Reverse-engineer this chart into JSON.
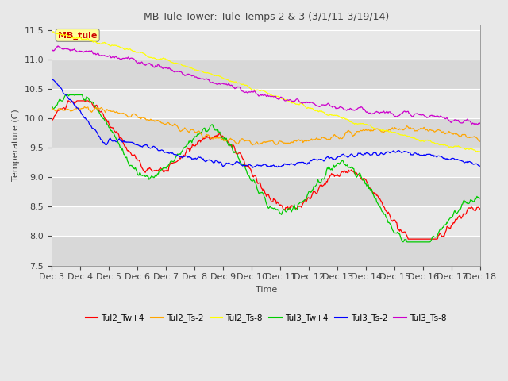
{
  "title": "MB Tule Tower: Tule Temps 2 & 3 (3/1/11-3/19/14)",
  "xlabel": "Time",
  "ylabel": "Temperature (C)",
  "ylim": [
    7.5,
    11.6
  ],
  "yticks": [
    7.5,
    8.0,
    8.5,
    9.0,
    9.5,
    10.0,
    10.5,
    11.0,
    11.5
  ],
  "xtick_labels": [
    "Dec 3",
    "Dec 4",
    "Dec 5",
    "Dec 6",
    "Dec 7",
    "Dec 8",
    "Dec 9",
    "Dec 10",
    "Dec 11",
    "Dec 12",
    "Dec 13",
    "Dec 14",
    "Dec 15",
    "Dec 16",
    "Dec 17",
    "Dec 18"
  ],
  "legend_labels": [
    "Tul2_Tw+4",
    "Tul2_Ts-2",
    "Tul2_Ts-8",
    "Tul3_Tw+4",
    "Tul3_Ts-2",
    "Tul3_Ts-8"
  ],
  "line_colors": [
    "#ff0000",
    "#ffa500",
    "#ffff00",
    "#00cc00",
    "#0000ff",
    "#cc00cc"
  ],
  "background_color": "#e8e8e8",
  "band_color_light": "#e8e8e8",
  "band_color_dark": "#d8d8d8",
  "annotation_text": "MB_tule",
  "annotation_color": "#cc0000",
  "annotation_bg": "#ffff99",
  "n_points": 600,
  "figsize": [
    6.4,
    4.8
  ],
  "dpi": 100
}
